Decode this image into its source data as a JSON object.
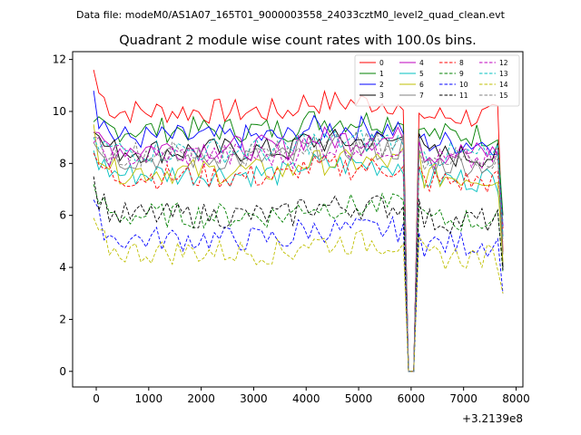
{
  "chart_data": {
    "type": "line",
    "suptitle": "Data file: modeM0/AS1A07_165T01_9000003558_24033cztM0_level2_quad_clean.evt",
    "title": "Quadrant 2 module wise count rates with 100.0s bins.",
    "xlabel": "",
    "ylabel": "",
    "x_offset_label": "+3.2139e8",
    "xlim": [
      -450,
      8130
    ],
    "ylim": [
      -0.6,
      12.3
    ],
    "xticks": [
      0,
      1000,
      2000,
      3000,
      4000,
      5000,
      6000,
      7000,
      8000
    ],
    "yticks": [
      0,
      2,
      4,
      6,
      8,
      10,
      12
    ],
    "grid": false,
    "legend": {
      "placement": "top-right",
      "columns": 4
    },
    "x": [
      -50,
      50,
      150,
      250,
      350,
      450,
      550,
      650,
      750,
      850,
      950,
      1050,
      1150,
      1250,
      1350,
      1450,
      1550,
      1650,
      1750,
      1850,
      1950,
      2050,
      2150,
      2250,
      2350,
      2450,
      2550,
      2650,
      2750,
      2850,
      2950,
      3050,
      3150,
      3250,
      3350,
      3450,
      3550,
      3650,
      3750,
      3850,
      3950,
      4050,
      4150,
      4250,
      4350,
      4450,
      4550,
      4650,
      4750,
      4850,
      4950,
      5050,
      5150,
      5250,
      5350,
      5450,
      5550,
      5650,
      5750,
      5850,
      5950,
      6050,
      6150,
      6250,
      6350,
      6450,
      6550,
      6650,
      6750,
      6850,
      6950,
      7050,
      7150,
      7250,
      7350,
      7450,
      7550,
      7650,
      7750
    ],
    "series": [
      {
        "name": "0",
        "color": "#ff0000",
        "dash": "solid",
        "base": 10.0,
        "start": 11.6,
        "gap_level": 10.0,
        "end": 4.6
      },
      {
        "name": "1",
        "color": "#008000",
        "dash": "solid",
        "base": 9.3,
        "start": 9.6,
        "gap_level": 9.5,
        "end": 6.0
      },
      {
        "name": "2",
        "color": "#0000ff",
        "dash": "solid",
        "base": 9.0,
        "start": 10.8,
        "gap_level": 9.0,
        "end": 5.6
      },
      {
        "name": "3",
        "color": "#000000",
        "dash": "solid",
        "base": 8.5,
        "start": 9.2,
        "gap_level": 9.2,
        "end": 4.0
      },
      {
        "name": "4",
        "color": "#bf00bf",
        "dash": "solid",
        "base": 8.6,
        "start": 9.2,
        "gap_level": 9.0,
        "end": 5.2
      },
      {
        "name": "5",
        "color": "#00bfbf",
        "dash": "solid",
        "base": 7.6,
        "start": 8.5,
        "gap_level": 7.8,
        "end": 5.8
      },
      {
        "name": "6",
        "color": "#bfbf00",
        "dash": "solid",
        "base": 7.7,
        "start": 9.5,
        "gap_level": 8.5,
        "end": 4.2
      },
      {
        "name": "7",
        "color": "#808080",
        "dash": "solid",
        "base": 8.2,
        "start": 8.8,
        "gap_level": 9.0,
        "end": 4.5
      },
      {
        "name": "8",
        "color": "#ff0000",
        "dash": "dashed",
        "base": 7.5,
        "start": 8.4,
        "gap_level": 7.8,
        "end": 5.5
      },
      {
        "name": "9",
        "color": "#008000",
        "dash": "dashed",
        "base": 6.0,
        "start": 7.2,
        "gap_level": 6.5,
        "end": 3.8
      },
      {
        "name": "10",
        "color": "#0000ff",
        "dash": "dashed",
        "base": 5.1,
        "start": 6.6,
        "gap_level": 5.5,
        "end": 3.0
      },
      {
        "name": "11",
        "color": "#000000",
        "dash": "dashed",
        "base": 6.0,
        "start": 7.5,
        "gap_level": 6.5,
        "end": 3.9
      },
      {
        "name": "12",
        "color": "#bf00bf",
        "dash": "dashed",
        "base": 8.3,
        "start": 8.8,
        "gap_level": 8.7,
        "end": 5.5
      },
      {
        "name": "13",
        "color": "#00bfbf",
        "dash": "dashed",
        "base": 8.5,
        "start": 9.0,
        "gap_level": 8.6,
        "end": 5.2
      },
      {
        "name": "14",
        "color": "#bfbf00",
        "dash": "dashed",
        "base": 4.6,
        "start": 5.9,
        "gap_level": 5.0,
        "end": 3.0
      },
      {
        "name": "15",
        "color": "#808080",
        "dash": "dashed",
        "base": 8.4,
        "start": 9.0,
        "gap_level": 8.8,
        "end": 5.0
      }
    ]
  }
}
